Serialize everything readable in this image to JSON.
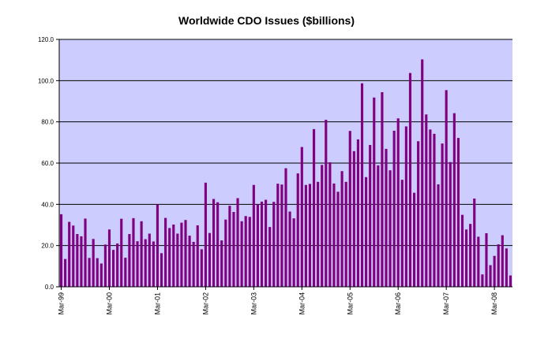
{
  "chart_data": {
    "type": "bar",
    "title": "Worldwide CDO Issues ($billions)",
    "xlabel": "",
    "ylabel": "",
    "ylim": [
      0,
      120
    ],
    "yticks": [
      "0.0",
      "20.0",
      "40.0",
      "60.0",
      "80.0",
      "100.0",
      "120.0"
    ],
    "xtick_labels": [
      "Mar-99",
      "Mar-00",
      "Mar-01",
      "Mar-02",
      "Mar-03",
      "Mar-04",
      "Mar-05",
      "Mar-06",
      "Mar-07",
      "Mar-08"
    ],
    "categories_start": "Mar-99",
    "frequency": "monthly",
    "grid": true,
    "legend": "none",
    "colors": {
      "bar": "#800080",
      "plot_background": "#ccccff",
      "gridline": "#000000"
    },
    "values": [
      35.2,
      13.5,
      31.5,
      29.7,
      25.6,
      24.5,
      33.1,
      14.0,
      23.2,
      13.9,
      11.3,
      20.5,
      27.8,
      17.9,
      21.0,
      33.0,
      14.1,
      25.6,
      33.3,
      22.1,
      31.8,
      23.1,
      25.8,
      22.0,
      40.0,
      16.3,
      33.4,
      28.5,
      30.2,
      25.8,
      31.1,
      32.4,
      24.8,
      21.8,
      29.8,
      18.2,
      50.5,
      26.1,
      42.6,
      41.0,
      22.5,
      32.6,
      39.3,
      36.3,
      43.0,
      31.8,
      34.3,
      33.9,
      49.4,
      40.0,
      41.3,
      42.2,
      29.0,
      41.2,
      50.0,
      49.6,
      57.5,
      36.5,
      33.2,
      55.0,
      67.8,
      49.4,
      49.9,
      76.5,
      50.9,
      59.1,
      81.0,
      60.4,
      50.1,
      46.1,
      56.1,
      50.9,
      75.6,
      65.8,
      71.5,
      98.7,
      53.2,
      68.8,
      91.8,
      58.9,
      94.4,
      66.9,
      56.5,
      75.7,
      81.7,
      51.9,
      77.8,
      103.7,
      45.6,
      70.6,
      110.3,
      83.6,
      76.3,
      74.2,
      49.7,
      69.5,
      95.4,
      60.5,
      84.2,
      72.2,
      34.9,
      27.8,
      30.5,
      42.8,
      24.3,
      6.0,
      26.0,
      10.5,
      15.0,
      20.6,
      25.0,
      18.6,
      5.5
    ]
  }
}
